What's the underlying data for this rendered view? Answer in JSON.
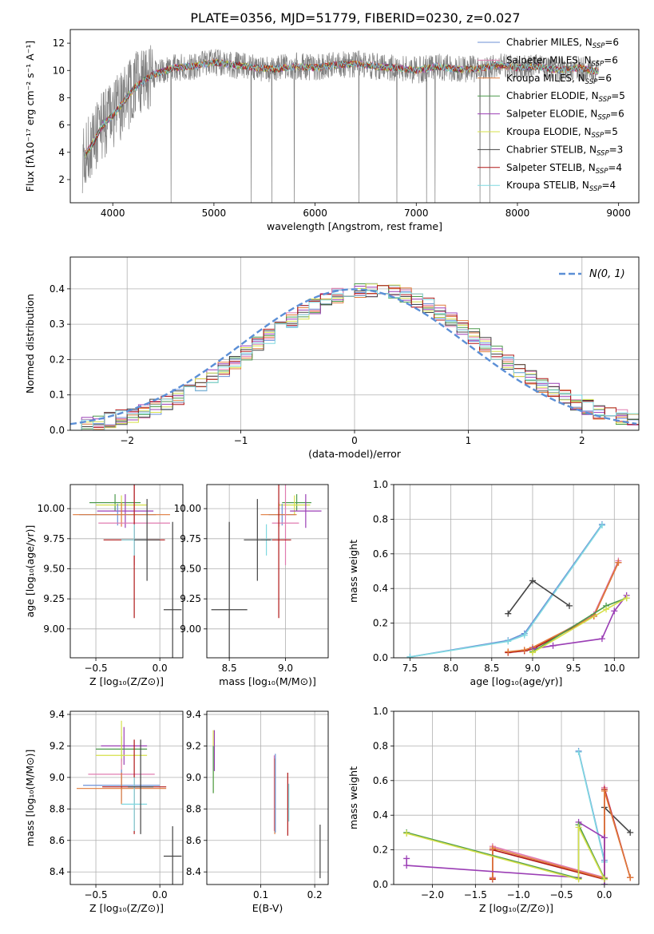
{
  "figure": {
    "title": "PLATE=0356, MJD=51779, FIBERID=0230, z=0.027"
  },
  "chart_data": [
    {
      "id": "spectrum",
      "type": "line",
      "xlabel": "wavelength [Angstrom, rest frame]",
      "ylabel": "Flux [fλ10⁻¹⁷ erg cm⁻² s⁻¹ A⁻¹]",
      "xlim": [
        3580,
        9200
      ],
      "ylim": [
        0.3,
        13
      ],
      "xticks": [
        4000,
        5000,
        6000,
        7000,
        8000,
        9000
      ],
      "yticks": [
        2,
        4,
        6,
        8,
        10,
        12
      ],
      "grid": false,
      "legend_position": "top-right",
      "data_color": "#808080",
      "data_x": [
        3700,
        3800,
        3900,
        4000,
        4100,
        4200,
        4300,
        4400,
        4600,
        4800,
        5000,
        5200,
        5400,
        5600,
        5800,
        6000,
        6200,
        6400,
        6600,
        6800,
        7000,
        7200,
        7400,
        7600,
        7800,
        8000,
        8200,
        8400,
        8600,
        8800
      ],
      "data_y": [
        3.6,
        4.6,
        6.0,
        6.7,
        7.6,
        8.6,
        9.2,
        9.7,
        10.2,
        10.3,
        10.6,
        10.4,
        10.2,
        10.1,
        10.3,
        10.2,
        10.4,
        10.5,
        10.3,
        10.2,
        10.0,
        10.3,
        10.1,
        10.1,
        10.4,
        10.2,
        10.3,
        10.0,
        10.2,
        9.9
      ],
      "legend": [
        {
          "label": "Chabrier MILES, N",
          "sub": "SSP",
          "tail": "=6",
          "color": "#6b8fd6"
        },
        {
          "label": "Salpeter MILES, N",
          "sub": "SSP",
          "tail": "=6",
          "color": "#e07bb0"
        },
        {
          "label": "Kroupa MILES, N",
          "sub": "SSP",
          "tail": "=6",
          "color": "#e07a3a"
        },
        {
          "label": "Chabrier ELODIE, N",
          "sub": "SSP",
          "tail": "=5",
          "color": "#4c9a4c"
        },
        {
          "label": "Salpeter ELODIE, N",
          "sub": "SSP",
          "tail": "=6",
          "color": "#9b3fb5"
        },
        {
          "label": "Kroupa ELODIE, N",
          "sub": "SSP",
          "tail": "=5",
          "color": "#d6e04a"
        },
        {
          "label": "Chabrier STELIB, N",
          "sub": "SSP",
          "tail": "=3",
          "color": "#444444"
        },
        {
          "label": "Salpeter STELIB, N",
          "sub": "SSP",
          "tail": "=4",
          "color": "#b01818"
        },
        {
          "label": "Kroupa STELIB, N",
          "sub": "SSP",
          "tail": "=4",
          "color": "#7fd8e0"
        }
      ]
    },
    {
      "id": "residuals",
      "type": "line",
      "xlabel": "(data-model)/error",
      "ylabel": "Normed distribution",
      "xlim": [
        -2.5,
        2.5
      ],
      "ylim": [
        0,
        0.49
      ],
      "xticks": [
        -2,
        -1,
        0,
        1,
        2
      ],
      "xtick_labels": [
        "−2",
        "−1",
        "0",
        "1",
        "2"
      ],
      "yticks": [
        0.0,
        0.1,
        0.2,
        0.3,
        0.4
      ],
      "grid": true,
      "legend_position": "top-right",
      "legend_label": "N(0, 1)",
      "gaussian_color": "#5b8fd6",
      "bin_width": 0.1,
      "series_colors": [
        "#6b8fd6",
        "#e07bb0",
        "#e07a3a",
        "#4c9a4c",
        "#9b3fb5",
        "#d6e04a",
        "#444444",
        "#b01818",
        "#7fd8e0"
      ]
    },
    {
      "id": "age-vs-Z",
      "type": "scatter",
      "xlabel": "Z [log₁₀(Z/Z⊙)]",
      "ylabel": "age  [log₁₀(age/yr)]",
      "xlim": [
        -0.7,
        0.18
      ],
      "ylim": [
        8.76,
        10.2
      ],
      "xticks": [
        -0.5,
        0.0
      ],
      "xtick_labels": [
        "−0.5",
        "0.0"
      ],
      "yticks": [
        9.0,
        9.25,
        9.5,
        9.75,
        10.0
      ],
      "ytick_labels": [
        "9.00",
        "9.25",
        "9.50",
        "9.75",
        "10.00"
      ],
      "grid": true,
      "points": [
        {
          "x": -0.35,
          "y": 10.05,
          "xerr": 0.2,
          "yerr": 0.07,
          "color": "#4c9a4c"
        },
        {
          "x": -0.3,
          "y": 10.03,
          "xerr": 0.2,
          "yerr": 0.08,
          "color": "#d6e04a"
        },
        {
          "x": -0.27,
          "y": 9.98,
          "xerr": 0.22,
          "yerr": 0.14,
          "color": "#9b3fb5"
        },
        {
          "x": -0.33,
          "y": 9.95,
          "xerr": 0.3,
          "yerr": 0.09,
          "color": "#6b8fd6"
        },
        {
          "x": -0.3,
          "y": 9.95,
          "xerr": 0.38,
          "yerr": 0.1,
          "color": "#e07a3a"
        },
        {
          "x": -0.2,
          "y": 9.88,
          "xerr": 0.28,
          "yerr": 0.35,
          "color": "#e07bb0"
        },
        {
          "x": -0.2,
          "y": 9.74,
          "xerr": 0.24,
          "yerr": 0.65,
          "color": "#b01818"
        },
        {
          "x": -0.2,
          "y": 9.74,
          "xerr": 0.1,
          "yerr": 0.13,
          "color": "#7fd8e0"
        },
        {
          "x": -0.1,
          "y": 9.74,
          "xerr": 0.1,
          "yerr": 0.34,
          "color": "#444444"
        },
        {
          "x": 0.1,
          "y": 9.16,
          "xerr": 0.07,
          "yerr": 0.73,
          "color": "#444444"
        }
      ]
    },
    {
      "id": "age-vs-mass",
      "type": "scatter",
      "xlabel": "mass [log₁₀(M/M⊙)]",
      "ylabel": "",
      "xlim": [
        8.3,
        9.38
      ],
      "ylim": [
        8.76,
        10.2
      ],
      "xticks": [
        8.5,
        9.0
      ],
      "xtick_labels": [
        "8.5",
        "9.0"
      ],
      "yticks": [
        9.0,
        9.25,
        9.5,
        9.75,
        10.0
      ],
      "ytick_labels": [
        "9.00",
        "9.25",
        "9.50",
        "9.75",
        "10.00"
      ],
      "grid": true,
      "points": [
        {
          "x": 9.1,
          "y": 10.05,
          "xerr": 0.13,
          "yerr": 0.07,
          "color": "#4c9a4c"
        },
        {
          "x": 9.08,
          "y": 10.03,
          "xerr": 0.14,
          "yerr": 0.08,
          "color": "#d6e04a"
        },
        {
          "x": 9.18,
          "y": 9.98,
          "xerr": 0.14,
          "yerr": 0.14,
          "color": "#9b3fb5"
        },
        {
          "x": 8.97,
          "y": 9.95,
          "xerr": 0.12,
          "yerr": 0.09,
          "color": "#6b8fd6"
        },
        {
          "x": 8.94,
          "y": 9.95,
          "xerr": 0.16,
          "yerr": 0.1,
          "color": "#e07a3a"
        },
        {
          "x": 9.0,
          "y": 9.88,
          "xerr": 0.12,
          "yerr": 0.35,
          "color": "#e07bb0"
        },
        {
          "x": 8.94,
          "y": 9.74,
          "xerr": 0.11,
          "yerr": 0.65,
          "color": "#b01818"
        },
        {
          "x": 8.83,
          "y": 9.74,
          "xerr": 0.05,
          "yerr": 0.13,
          "color": "#7fd8e0"
        },
        {
          "x": 8.75,
          "y": 9.74,
          "xerr": 0.12,
          "yerr": 0.34,
          "color": "#444444"
        },
        {
          "x": 8.5,
          "y": 9.16,
          "xerr": 0.16,
          "yerr": 0.73,
          "color": "#444444"
        }
      ]
    },
    {
      "id": "weight-vs-age",
      "type": "line",
      "xlabel": "age  [log₁₀(age/yr)]",
      "ylabel": "mass weight",
      "xlim": [
        7.3,
        10.3
      ],
      "ylim": [
        0,
        1
      ],
      "xticks": [
        7.5,
        8.0,
        8.5,
        9.0,
        9.5,
        10.0
      ],
      "xtick_labels": [
        "7.5",
        "8.0",
        "8.5",
        "9.0",
        "9.5",
        "10.0"
      ],
      "yticks": [
        0,
        0.2,
        0.4,
        0.6,
        0.8,
        1.0
      ],
      "ytick_labels": [
        "0.0",
        "0.2",
        "0.4",
        "0.6",
        "0.8",
        "1.0"
      ],
      "grid": true,
      "series": [
        {
          "color": "#6b8fd6",
          "x": [
            7.5,
            8.7,
            8.9,
            9.85
          ],
          "y": [
            0.005,
            0.1,
            0.14,
            0.77
          ]
        },
        {
          "color": "#7fd8e0",
          "x": [
            7.5,
            8.7,
            8.9,
            9.85
          ],
          "y": [
            0.005,
            0.095,
            0.13,
            0.765
          ]
        },
        {
          "color": "#444444",
          "x": [
            8.7,
            9.0,
            9.45
          ],
          "y": [
            0.255,
            0.445,
            0.3
          ]
        },
        {
          "color": "#e07bb0",
          "x": [
            8.7,
            8.9,
            9.0,
            9.75,
            10.05
          ],
          "y": [
            0.03,
            0.04,
            0.05,
            0.25,
            0.56
          ]
        },
        {
          "color": "#b01818",
          "x": [
            8.7,
            8.9,
            9.0,
            9.75,
            10.05
          ],
          "y": [
            0.03,
            0.04,
            0.05,
            0.24,
            0.55
          ]
        },
        {
          "color": "#e07a3a",
          "x": [
            8.7,
            8.9,
            9.0,
            9.75,
            10.05
          ],
          "y": [
            0.035,
            0.045,
            0.06,
            0.24,
            0.55
          ]
        },
        {
          "color": "#9b3fb5",
          "x": [
            9.0,
            9.25,
            9.85,
            10.0,
            10.15
          ],
          "y": [
            0.05,
            0.07,
            0.11,
            0.27,
            0.36
          ]
        },
        {
          "color": "#4c9a4c",
          "x": [
            9.0,
            9.9,
            10.15
          ],
          "y": [
            0.035,
            0.3,
            0.345
          ]
        },
        {
          "color": "#d6e04a",
          "x": [
            9.0,
            9.9,
            10.15
          ],
          "y": [
            0.03,
            0.28,
            0.345
          ]
        }
      ]
    },
    {
      "id": "mass-vs-Z",
      "type": "scatter",
      "xlabel": "Z [log₁₀(Z/Z⊙)]",
      "ylabel": "mass [log₁₀(M/M⊙)]",
      "xlim": [
        -0.7,
        0.18
      ],
      "ylim": [
        8.32,
        9.42
      ],
      "xticks": [
        -0.5,
        0.0
      ],
      "xtick_labels": [
        "−0.5",
        "0.0"
      ],
      "yticks": [
        8.4,
        8.6,
        8.8,
        9.0,
        9.2,
        9.4
      ],
      "ytick_labels": [
        "8.4",
        "8.6",
        "8.8",
        "9.0",
        "9.2",
        "9.4"
      ],
      "grid": true,
      "points": [
        {
          "x": -0.28,
          "y": 9.2,
          "xerr": 0.18,
          "yerr": 0.12,
          "color": "#9b3fb5"
        },
        {
          "x": -0.3,
          "y": 9.18,
          "xerr": 0.2,
          "yerr": 0.08,
          "color": "#4c9a4c"
        },
        {
          "x": -0.3,
          "y": 9.14,
          "xerr": 0.2,
          "yerr": 0.22,
          "color": "#d6e04a"
        },
        {
          "x": -0.3,
          "y": 9.02,
          "xerr": 0.26,
          "yerr": 0.1,
          "color": "#e07bb0"
        },
        {
          "x": -0.3,
          "y": 8.95,
          "xerr": 0.3,
          "yerr": 0.1,
          "color": "#6b8fd6"
        },
        {
          "x": -0.3,
          "y": 8.93,
          "xerr": 0.35,
          "yerr": 0.1,
          "color": "#e07a3a"
        },
        {
          "x": -0.2,
          "y": 8.94,
          "xerr": 0.25,
          "yerr": 0.3,
          "color": "#b01818"
        },
        {
          "x": -0.2,
          "y": 8.83,
          "xerr": 0.1,
          "yerr": 0.17,
          "color": "#7fd8e0"
        },
        {
          "x": -0.15,
          "y": 8.94,
          "xerr": 0.1,
          "yerr": 0.3,
          "color": "#444444"
        },
        {
          "x": 0.1,
          "y": 8.5,
          "xerr": 0.07,
          "yerr": 0.19,
          "color": "#444444"
        }
      ]
    },
    {
      "id": "mass-vs-EBV",
      "type": "scatter",
      "xlabel": "E(B-V)",
      "ylabel": "",
      "xlim": [
        0.0,
        0.225
      ],
      "ylim": [
        8.32,
        9.42
      ],
      "xticks": [
        0.1,
        0.2
      ],
      "xtick_labels": [
        "0.1",
        "0.2"
      ],
      "yticks": [
        8.4,
        8.6,
        8.8,
        9.0,
        9.2,
        9.4
      ],
      "ytick_labels": [
        "8.4",
        "8.6",
        "8.8",
        "9.0",
        "9.2",
        "9.4"
      ],
      "grid": true,
      "points": [
        {
          "x": 0.012,
          "y": 9.1,
          "xerr": 0,
          "yerr": 0.2,
          "color": "#d6e04a"
        },
        {
          "x": 0.014,
          "y": 9.17,
          "xerr": 0,
          "yerr": 0.13,
          "color": "#9b3fb5"
        },
        {
          "x": 0.012,
          "y": 9.05,
          "xerr": 0,
          "yerr": 0.15,
          "color": "#4c9a4c"
        },
        {
          "x": 0.125,
          "y": 8.9,
          "xerr": 0,
          "yerr": 0.24,
          "color": "#e07bb0"
        },
        {
          "x": 0.126,
          "y": 8.88,
          "xerr": 0,
          "yerr": 0.24,
          "color": "#e07a3a"
        },
        {
          "x": 0.127,
          "y": 8.9,
          "xerr": 0,
          "yerr": 0.25,
          "color": "#6b8fd6"
        },
        {
          "x": 0.15,
          "y": 8.83,
          "xerr": 0,
          "yerr": 0.2,
          "color": "#b01818"
        },
        {
          "x": 0.152,
          "y": 8.84,
          "xerr": 0,
          "yerr": 0.12,
          "color": "#7fd8e0"
        },
        {
          "x": 0.21,
          "y": 8.53,
          "xerr": 0,
          "yerr": 0.17,
          "color": "#444444"
        }
      ]
    },
    {
      "id": "weight-vs-Z",
      "type": "line",
      "xlabel": "Z [log₁₀(Z/Z⊙)]",
      "ylabel": "mass weight",
      "xlim": [
        -2.45,
        0.4
      ],
      "ylim": [
        0,
        1
      ],
      "xticks": [
        -2.0,
        -1.5,
        -1.0,
        -0.5,
        0.0
      ],
      "xtick_labels": [
        "−2.0",
        "−1.5",
        "−1.0",
        "−0.5",
        "0.0"
      ],
      "yticks": [
        0,
        0.2,
        0.4,
        0.6,
        0.8,
        1.0
      ],
      "ytick_labels": [
        "0.0",
        "0.2",
        "0.4",
        "0.6",
        "0.8",
        "1.0"
      ],
      "grid": true,
      "series": [
        {
          "color": "#6b8fd6",
          "x": [
            -0.3,
            0.0,
            0.0
          ],
          "y": [
            0.77,
            0.14,
            0.0
          ]
        },
        {
          "color": "#7fd8e0",
          "x": [
            -0.3,
            0.0,
            0.0
          ],
          "y": [
            0.765,
            0.13,
            0.0
          ]
        },
        {
          "color": "#444444",
          "x": [
            0.0,
            0.0,
            0.3
          ],
          "y": [
            0.0,
            0.445,
            0.3
          ]
        },
        {
          "color": "#e07bb0",
          "x": [
            -1.3,
            -1.3,
            0.0,
            0.0,
            0.3
          ],
          "y": [
            0.04,
            0.22,
            0.04,
            0.56,
            0.04
          ]
        },
        {
          "color": "#b01818",
          "x": [
            -1.3,
            -1.3,
            0.0,
            0.0,
            0.3
          ],
          "y": [
            0.03,
            0.2,
            0.03,
            0.55,
            0.04
          ]
        },
        {
          "color": "#e07a3a",
          "x": [
            -1.3,
            -1.3,
            0.0,
            0.0,
            0.3
          ],
          "y": [
            0.035,
            0.21,
            0.035,
            0.54,
            0.04
          ]
        },
        {
          "color": "#9b3fb5",
          "x": [
            -2.3,
            -2.3,
            -0.3,
            -0.3,
            0.0,
            0.0
          ],
          "y": [
            0.15,
            0.11,
            0.04,
            0.36,
            0.27,
            0.0
          ]
        },
        {
          "color": "#4c9a4c",
          "x": [
            -2.3,
            -0.3,
            -0.3,
            0.0
          ],
          "y": [
            0.3,
            0.035,
            0.345,
            0.035
          ]
        },
        {
          "color": "#d6e04a",
          "x": [
            -2.3,
            -0.3,
            -0.3,
            0.0
          ],
          "y": [
            0.295,
            0.03,
            0.33,
            0.03
          ]
        }
      ]
    }
  ]
}
